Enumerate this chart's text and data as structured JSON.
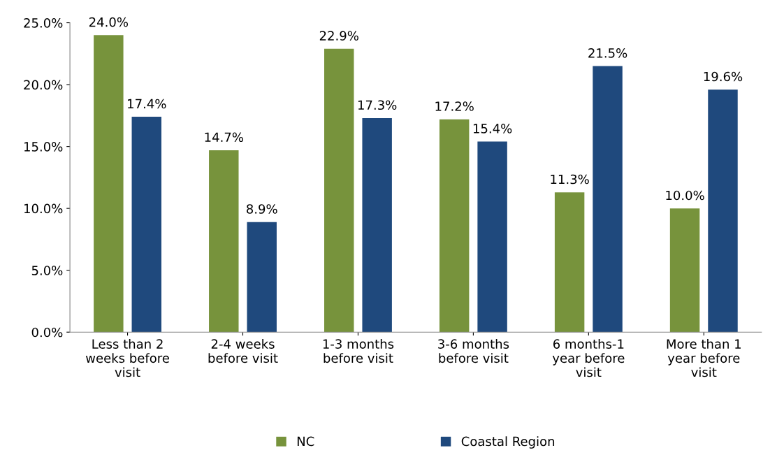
{
  "chart_data": {
    "type": "bar",
    "categories": [
      "Less than 2\nweeks before\nvisit",
      "2-4 weeks\nbefore visit",
      "1-3 months\nbefore visit",
      "3-6 months\nbefore visit",
      "6 months-1\nyear before\nvisit",
      "More than 1\nyear before\nvisit"
    ],
    "series": [
      {
        "name": "NC",
        "color": "#77933c",
        "values": [
          24.0,
          14.7,
          22.9,
          17.2,
          11.3,
          10.0
        ],
        "value_labels": [
          "24.0%",
          "14.7%",
          "22.9%",
          "17.2%",
          "11.3%",
          "10.0%"
        ]
      },
      {
        "name": "Coastal Region",
        "color": "#1f497d",
        "values": [
          17.4,
          8.9,
          17.3,
          15.4,
          21.5,
          19.6
        ],
        "value_labels": [
          "17.4%",
          "8.9%",
          "17.3%",
          "15.4%",
          "21.5%",
          "19.6%"
        ]
      }
    ],
    "ylim": [
      0,
      25
    ],
    "yticks": [
      {
        "value": 0,
        "label": "0.0%"
      },
      {
        "value": 5,
        "label": "5.0%"
      },
      {
        "value": 10,
        "label": "10.0%"
      },
      {
        "value": 15,
        "label": "15.0%"
      },
      {
        "value": 20,
        "label": "20.0%"
      },
      {
        "value": 25,
        "label": "25.0%"
      }
    ],
    "grid": false,
    "legend": "bottom"
  }
}
